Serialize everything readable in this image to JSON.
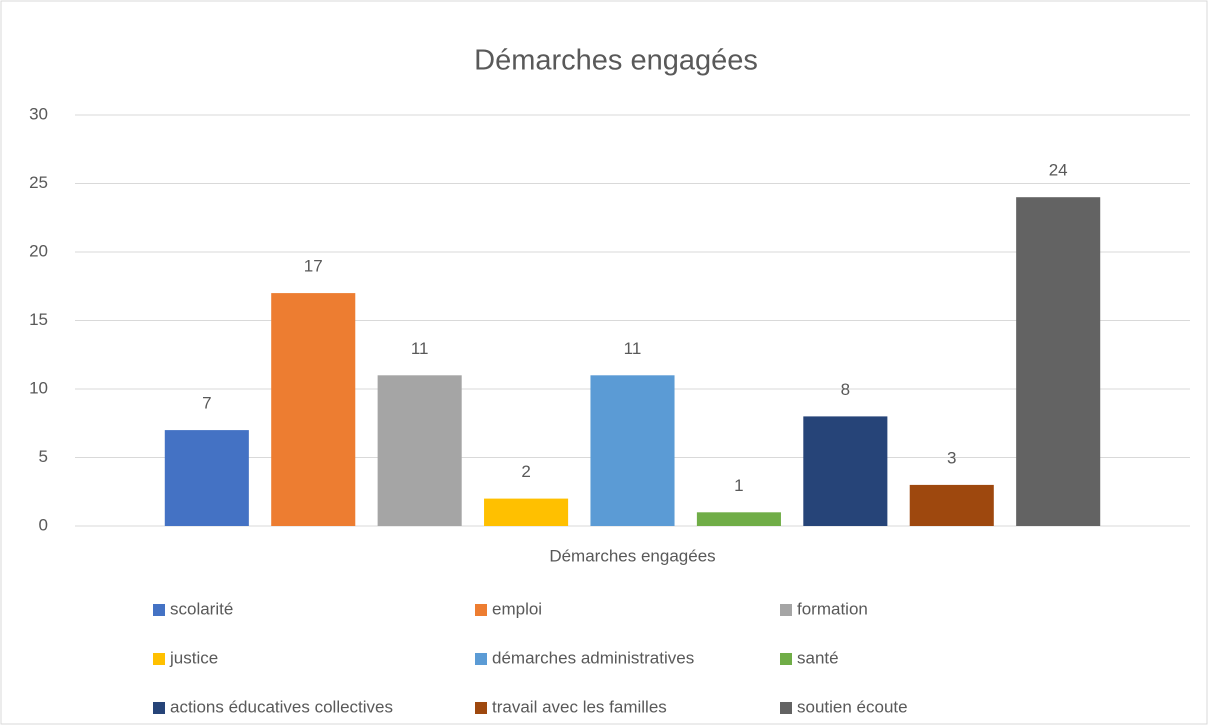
{
  "chart_data": {
    "type": "bar",
    "title": "Démarches engagées",
    "categories": [
      "Démarches engagées"
    ],
    "series": [
      {
        "name": "scolarité",
        "color": "#4472c4",
        "values": [
          7
        ]
      },
      {
        "name": "emploi",
        "color": "#ed7d31",
        "values": [
          17
        ]
      },
      {
        "name": "formation",
        "color": "#a5a5a5",
        "values": [
          11
        ]
      },
      {
        "name": "justice",
        "color": "#ffc000",
        "values": [
          2
        ]
      },
      {
        "name": "démarches administratives",
        "color": "#5b9bd5",
        "values": [
          11
        ]
      },
      {
        "name": "santé",
        "color": "#70ad47",
        "values": [
          1
        ]
      },
      {
        "name": "actions éducatives collectives",
        "color": "#264478",
        "values": [
          8
        ]
      },
      {
        "name": "travail avec les familles",
        "color": "#9e480e",
        "values": [
          3
        ]
      },
      {
        "name": "soutien écoute",
        "color": "#636363",
        "values": [
          24
        ]
      }
    ],
    "ylim": [
      0,
      30
    ],
    "yticks": [
      0,
      5,
      10,
      15,
      20,
      25,
      30
    ],
    "grid": true,
    "legend": "bottom"
  }
}
